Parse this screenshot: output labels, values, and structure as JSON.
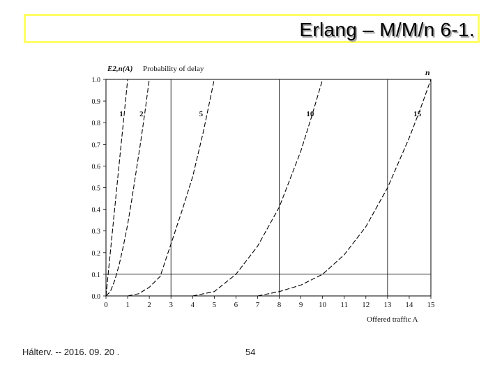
{
  "slide": {
    "title": "Erlang – M/M/n  6-1.",
    "footer_text": "Hálterv. -- 2016. 09. 20 .",
    "page_number": "54"
  },
  "colors": {
    "title_border": "#ffff66",
    "curve": "#000000",
    "grid": "#000000"
  },
  "chart_data": {
    "type": "line",
    "title": "",
    "ylabel_symbol": "E2,n(A)",
    "ylabel_text": "Probability of delay",
    "xlabel": "Offered traffic A",
    "series_axis_label": "n",
    "xlim": [
      0,
      15
    ],
    "ylim": [
      0,
      1
    ],
    "x_ticks": [
      "0",
      "1",
      "2",
      "3",
      "4",
      "5",
      "6",
      "7",
      "8",
      "9",
      "10",
      "11",
      "12",
      "13",
      "14",
      "15"
    ],
    "y_ticks": [
      "0.0",
      "0.1",
      "0.2",
      "0.3",
      "0.4",
      "0.5",
      "0.6",
      "0.7",
      "0.8",
      "0.9",
      "1.0"
    ],
    "series": [
      {
        "name": "1",
        "points": [
          [
            0,
            0
          ],
          [
            0.1,
            0.1
          ],
          [
            0.2,
            0.2
          ],
          [
            0.3,
            0.3
          ],
          [
            0.4,
            0.4
          ],
          [
            0.5,
            0.5
          ],
          [
            0.6,
            0.6
          ],
          [
            0.7,
            0.7
          ],
          [
            0.8,
            0.8
          ],
          [
            0.9,
            0.9
          ],
          [
            1.0,
            1.0
          ]
        ]
      },
      {
        "name": "2",
        "points": [
          [
            0,
            0
          ],
          [
            0.2,
            0.02
          ],
          [
            0.4,
            0.07
          ],
          [
            0.6,
            0.14
          ],
          [
            0.8,
            0.23
          ],
          [
            1.0,
            0.33
          ],
          [
            1.2,
            0.45
          ],
          [
            1.4,
            0.58
          ],
          [
            1.6,
            0.71
          ],
          [
            1.8,
            0.85
          ],
          [
            2.0,
            1.0
          ]
        ]
      },
      {
        "name": "5",
        "points": [
          [
            1,
            0.0
          ],
          [
            1.5,
            0.01
          ],
          [
            2,
            0.04
          ],
          [
            2.5,
            0.09
          ],
          [
            3,
            0.24
          ],
          [
            3.5,
            0.39
          ],
          [
            4,
            0.55
          ],
          [
            4.5,
            0.76
          ],
          [
            5,
            1.0
          ]
        ]
      },
      {
        "name": "10",
        "points": [
          [
            4,
            0.0
          ],
          [
            5,
            0.02
          ],
          [
            6,
            0.1
          ],
          [
            7,
            0.23
          ],
          [
            8,
            0.41
          ],
          [
            9,
            0.67
          ],
          [
            9.5,
            0.83
          ],
          [
            10,
            1.0
          ]
        ]
      },
      {
        "name": "15",
        "points": [
          [
            7,
            0.0
          ],
          [
            8,
            0.02
          ],
          [
            9,
            0.05
          ],
          [
            10,
            0.1
          ],
          [
            11,
            0.19
          ],
          [
            12,
            0.32
          ],
          [
            13,
            0.5
          ],
          [
            14,
            0.73
          ],
          [
            14.5,
            0.86
          ],
          [
            15,
            1.0
          ]
        ]
      }
    ],
    "grid_x": [
      "3",
      "8",
      "13"
    ],
    "grid_y": [
      "0.1"
    ],
    "curve_style": "dashed"
  }
}
